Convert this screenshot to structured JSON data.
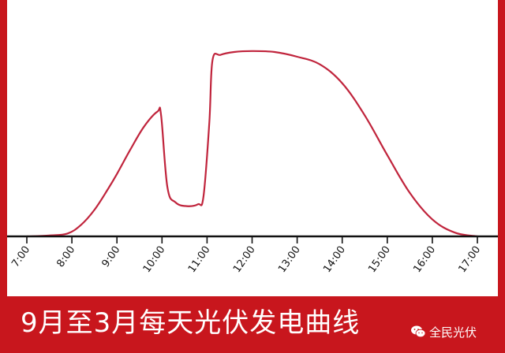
{
  "banner": {
    "title": "9月至3月每天光伏发电曲线",
    "watermark_text": "全民光伏",
    "watermark_icon": "wechat-icon"
  },
  "colors": {
    "frame": "#c8161d",
    "curve": "#c0243c",
    "axis": "#111111",
    "background": "#ffffff"
  },
  "chart_data": {
    "type": "line",
    "title": "9月至3月每天光伏发电曲线",
    "xlabel": "",
    "ylabel": "",
    "x_ticks": [
      "7:00",
      "8:00",
      "9:00",
      "10:00",
      "11:00",
      "12:00",
      "13:00",
      "14:00",
      "15:00",
      "16:00",
      "17:00"
    ],
    "xlim": [
      7.0,
      17.0
    ],
    "ylim": [
      0,
      1
    ],
    "y_axis_shown": false,
    "grid": false,
    "legend": "none",
    "series": [
      {
        "name": "",
        "x": [
          7.0,
          7.5,
          7.9,
          8.2,
          8.5,
          8.8,
          9.0,
          9.3,
          9.6,
          9.9,
          9.98,
          10.12,
          10.3,
          10.55,
          10.8,
          10.92,
          11.05,
          11.12,
          11.3,
          11.6,
          12.0,
          12.5,
          13.0,
          13.5,
          14.0,
          14.5,
          15.0,
          15.5,
          16.0,
          16.5,
          17.0
        ],
        "y": [
          0.0,
          0.005,
          0.015,
          0.06,
          0.14,
          0.25,
          0.33,
          0.46,
          0.58,
          0.66,
          0.64,
          0.26,
          0.18,
          0.16,
          0.17,
          0.21,
          0.6,
          0.93,
          0.96,
          0.975,
          0.98,
          0.975,
          0.95,
          0.91,
          0.81,
          0.64,
          0.43,
          0.23,
          0.09,
          0.02,
          0.0
        ]
      }
    ]
  }
}
